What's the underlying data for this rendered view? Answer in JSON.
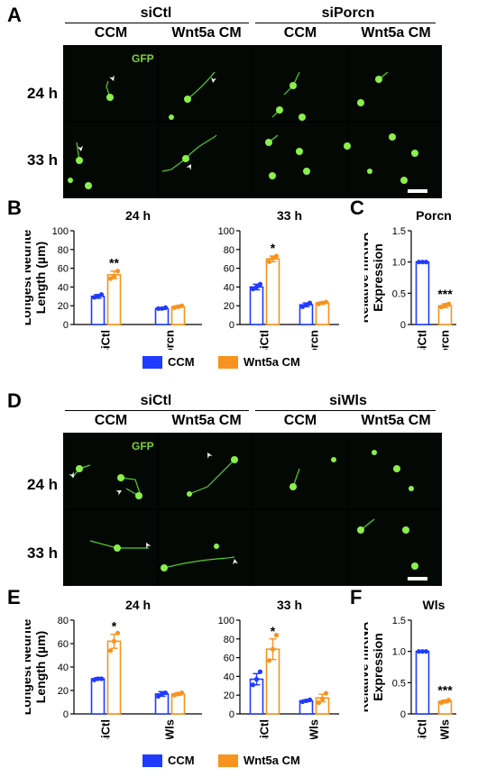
{
  "colors": {
    "ccm": "#1f3bff",
    "wnt": "#f7931e",
    "gfp": "#7ecf3a"
  },
  "panel_labels": {
    "a": "A",
    "b": "B",
    "c": "C",
    "d": "D",
    "e": "E",
    "f": "F"
  },
  "top": {
    "group1": "siCtl",
    "group2": "siPorcn",
    "conds": [
      "CCM",
      "Wnt5a CM",
      "CCM",
      "Wnt5a CM"
    ],
    "rows": [
      "24 h",
      "33 h"
    ],
    "gfp": "GFP"
  },
  "bottom": {
    "group1": "siCtl",
    "group2": "siWls",
    "conds": [
      "CCM",
      "Wnt5a CM",
      "CCM",
      "Wnt5a CM"
    ],
    "rows": [
      "24 h",
      "33 h"
    ],
    "gfp": "GFP"
  },
  "legend": {
    "ccm": "CCM",
    "wnt": "Wnt5a CM"
  },
  "chart_data": [
    {
      "id": "B24",
      "type": "bar",
      "title": "24 h",
      "ylabel": "Longest Neurite\nLength (µm)",
      "ylim": [
        0,
        100
      ],
      "yticks": [
        0,
        20,
        40,
        60,
        80,
        100
      ],
      "groups": [
        "siCtl",
        "siPorcn"
      ],
      "series": [
        {
          "name": "CCM",
          "values": [
            30,
            17
          ]
        },
        {
          "name": "Wnt5a CM",
          "values": [
            53,
            19
          ]
        }
      ],
      "errors": [
        [
          2,
          1
        ],
        [
          4,
          1
        ]
      ],
      "points": [
        [
          [
            29,
            30,
            32
          ],
          [
            17,
            17,
            18
          ]
        ],
        [
          [
            49,
            51,
            57
          ],
          [
            18,
            19,
            20
          ]
        ]
      ],
      "annotations": [
        {
          "group": 0,
          "series": 1,
          "text": "**"
        }
      ]
    },
    {
      "id": "B33",
      "type": "bar",
      "title": "33 h",
      "ylabel": "",
      "ylim": [
        0,
        100
      ],
      "yticks": [
        0,
        20,
        40,
        60,
        80,
        100
      ],
      "groups": [
        "siCtl",
        "siPorcn"
      ],
      "series": [
        {
          "name": "CCM",
          "values": [
            40,
            21
          ]
        },
        {
          "name": "Wnt5a CM",
          "values": [
            70,
            23
          ]
        }
      ],
      "errors": [
        [
          3,
          2
        ],
        [
          3,
          1
        ]
      ],
      "points": [
        [
          [
            38,
            40,
            43
          ],
          [
            19,
            21,
            23
          ]
        ],
        [
          [
            67,
            71,
            73
          ],
          [
            22,
            23,
            24
          ]
        ]
      ],
      "annotations": [
        {
          "group": 0,
          "series": 1,
          "text": "*"
        }
      ]
    },
    {
      "id": "C",
      "type": "bar",
      "title": "Porcn",
      "ylabel": "Relative mRNA\nExpression",
      "ylim": [
        0,
        1.5
      ],
      "yticks": [
        0,
        0.5,
        1.0,
        1.5
      ],
      "yticklabels": [
        "0",
        "0.5",
        "1.0",
        "1.5"
      ],
      "categories": [
        "siCtl",
        "siPorcn"
      ],
      "values": [
        1.0,
        0.3
      ],
      "errors": [
        0,
        0.03
      ],
      "points": [
        [
          1.0,
          1.0,
          1.0
        ],
        [
          0.28,
          0.31,
          0.33
        ]
      ],
      "annotations": [
        {
          "index": 1,
          "text": "***"
        }
      ]
    },
    {
      "id": "E24",
      "type": "bar",
      "title": "24 h",
      "ylabel": "Longest Neurite\nLength (µm)",
      "ylim": [
        0,
        80
      ],
      "yticks": [
        0,
        20,
        40,
        60,
        80
      ],
      "groups": [
        "siCtl",
        "siWls"
      ],
      "series": [
        {
          "name": "CCM",
          "values": [
            30,
            17
          ]
        },
        {
          "name": "Wnt5a CM",
          "values": [
            62,
            17
          ]
        }
      ],
      "errors": [
        [
          1,
          2
        ],
        [
          6,
          1
        ]
      ],
      "points": [
        [
          [
            29,
            30,
            30
          ],
          [
            15,
            17,
            18
          ]
        ],
        [
          [
            54,
            62,
            69
          ],
          [
            16,
            17,
            18
          ]
        ]
      ],
      "annotations": [
        {
          "group": 0,
          "series": 1,
          "text": "*"
        }
      ]
    },
    {
      "id": "E33",
      "type": "bar",
      "title": "33 h",
      "ylabel": "",
      "ylim": [
        0,
        100
      ],
      "yticks": [
        0,
        20,
        40,
        60,
        80,
        100
      ],
      "groups": [
        "siCtl",
        "siWls"
      ],
      "series": [
        {
          "name": "CCM",
          "values": [
            37,
            14
          ]
        },
        {
          "name": "Wnt5a CM",
          "values": [
            69,
            17
          ]
        }
      ],
      "errors": [
        [
          6,
          1
        ],
        [
          11,
          4
        ]
      ],
      "points": [
        [
          [
            31,
            37,
            45
          ],
          [
            13,
            14,
            15
          ]
        ],
        [
          [
            57,
            69,
            84
          ],
          [
            12,
            16,
            22
          ]
        ]
      ],
      "annotations": [
        {
          "group": 0,
          "series": 1,
          "text": "*"
        }
      ]
    },
    {
      "id": "F",
      "type": "bar",
      "title": "Wls",
      "ylabel": "Relative mRNA\nExpression",
      "ylim": [
        0,
        1.5
      ],
      "yticks": [
        0,
        0.5,
        1.0,
        1.5
      ],
      "yticklabels": [
        "0",
        "0.5",
        "1.0",
        "1.5"
      ],
      "categories": [
        "siCtl",
        "siWls"
      ],
      "values": [
        1.0,
        0.2
      ],
      "errors": [
        0,
        0.02
      ],
      "points": [
        [
          1.0,
          1.0,
          1.0
        ],
        [
          0.18,
          0.2,
          0.22
        ]
      ],
      "annotations": [
        {
          "index": 1,
          "text": "***"
        }
      ]
    }
  ]
}
